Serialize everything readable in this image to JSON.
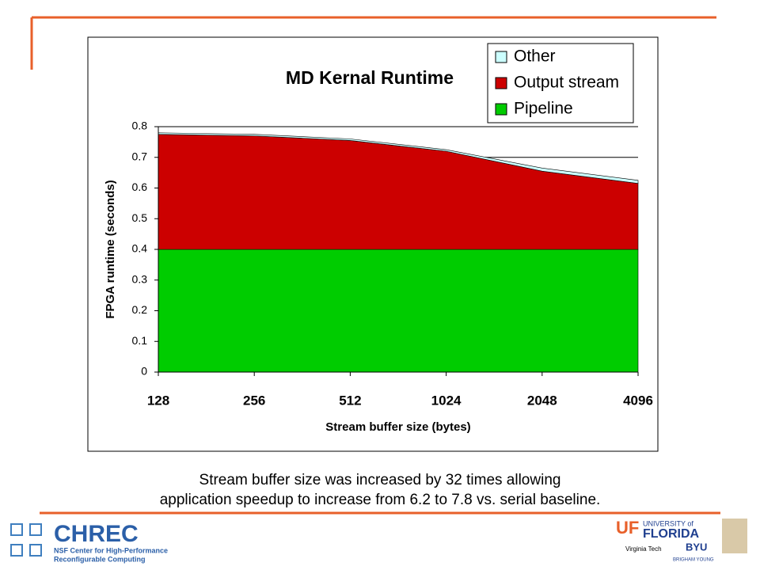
{
  "chart_data": {
    "type": "stacked-area",
    "title": "MD Kernal Runtime",
    "x_label": "Stream buffer size (bytes)",
    "y_label": "FPGA runtime (seconds)",
    "categories": [
      "128",
      "256",
      "512",
      "1024",
      "2048",
      "4096"
    ],
    "series": [
      {
        "name": "Other",
        "color": "#ccffff",
        "values": [
          0.005,
          0.005,
          0.005,
          0.005,
          0.01,
          0.01
        ]
      },
      {
        "name": "Output stream",
        "color": "#cc0000",
        "values": [
          0.375,
          0.37,
          0.355,
          0.32,
          0.255,
          0.215
        ]
      },
      {
        "name": "Pipeline",
        "color": "#00cc00",
        "values": [
          0.4,
          0.4,
          0.4,
          0.4,
          0.4,
          0.4
        ]
      }
    ],
    "ylim": [
      0,
      0.8
    ],
    "yticks": [
      0,
      0.1,
      0.2,
      0.3,
      0.4,
      0.5,
      0.6,
      0.7,
      0.8
    ],
    "grid": true,
    "legend": "top-right"
  },
  "slide": {
    "caption": [
      "Stream buffer size was increased by 32 times allowing",
      "application speedup to increase from 6.2 to 7.8 vs. serial baseline."
    ],
    "logos": {
      "chrec": "CHREC",
      "chrec_sub": [
        "NSF Center for High-Performance",
        "Reconfigurable Computing"
      ],
      "uf": "UF",
      "uf_name": "UNIVERSITY of",
      "uf_florida": "FLORIDA",
      "vt": "Virginia Tech",
      "byu": "BYU",
      "byu_sub": "BRIGHAM YOUNG"
    }
  }
}
